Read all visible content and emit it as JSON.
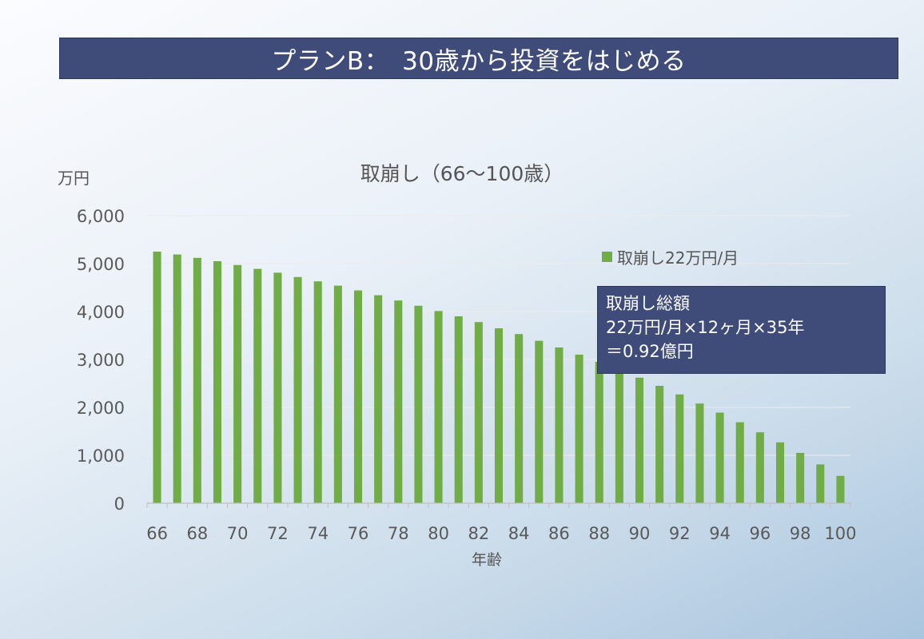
{
  "header": {
    "title": "プランB：　30歳から投資をはじめる"
  },
  "colors": {
    "bar": "#70ad47",
    "banner": "#3f4b79",
    "gridline": "#ececec",
    "axis": "#bfbfbf"
  },
  "chart_data": {
    "type": "bar",
    "title": "取崩し（66～100歳）",
    "ylabel": "万円",
    "xlabel": "年齢",
    "ylim": [
      0,
      6000
    ],
    "yticks": [
      0,
      1000,
      2000,
      3000,
      4000,
      5000,
      6000
    ],
    "ytick_labels": [
      "0",
      "1,000",
      "2,000",
      "3,000",
      "4,000",
      "5,000",
      "6,000"
    ],
    "xtick_labels": [
      "66",
      "68",
      "70",
      "72",
      "74",
      "76",
      "78",
      "80",
      "82",
      "84",
      "86",
      "88",
      "90",
      "92",
      "94",
      "96",
      "98",
      "100"
    ],
    "grid": true,
    "legend_position": "right",
    "categories": [
      66,
      67,
      68,
      69,
      70,
      71,
      72,
      73,
      74,
      75,
      76,
      77,
      78,
      79,
      80,
      81,
      82,
      83,
      84,
      85,
      86,
      87,
      88,
      89,
      90,
      91,
      92,
      93,
      94,
      95,
      96,
      97,
      98,
      99,
      100
    ],
    "series": [
      {
        "name": "取崩し22万円/月",
        "values": [
          5250,
          5190,
          5120,
          5050,
          4970,
          4890,
          4810,
          4720,
          4630,
          4540,
          4440,
          4340,
          4230,
          4120,
          4010,
          3900,
          3780,
          3650,
          3530,
          3390,
          3250,
          3100,
          2950,
          2800,
          2620,
          2450,
          2270,
          2080,
          1890,
          1690,
          1480,
          1270,
          1050,
          810,
          570
        ]
      }
    ],
    "annotation": {
      "lines": [
        "取崩し総額",
        "22万円/月×12ヶ月×35年",
        "＝0.92億円"
      ]
    }
  }
}
